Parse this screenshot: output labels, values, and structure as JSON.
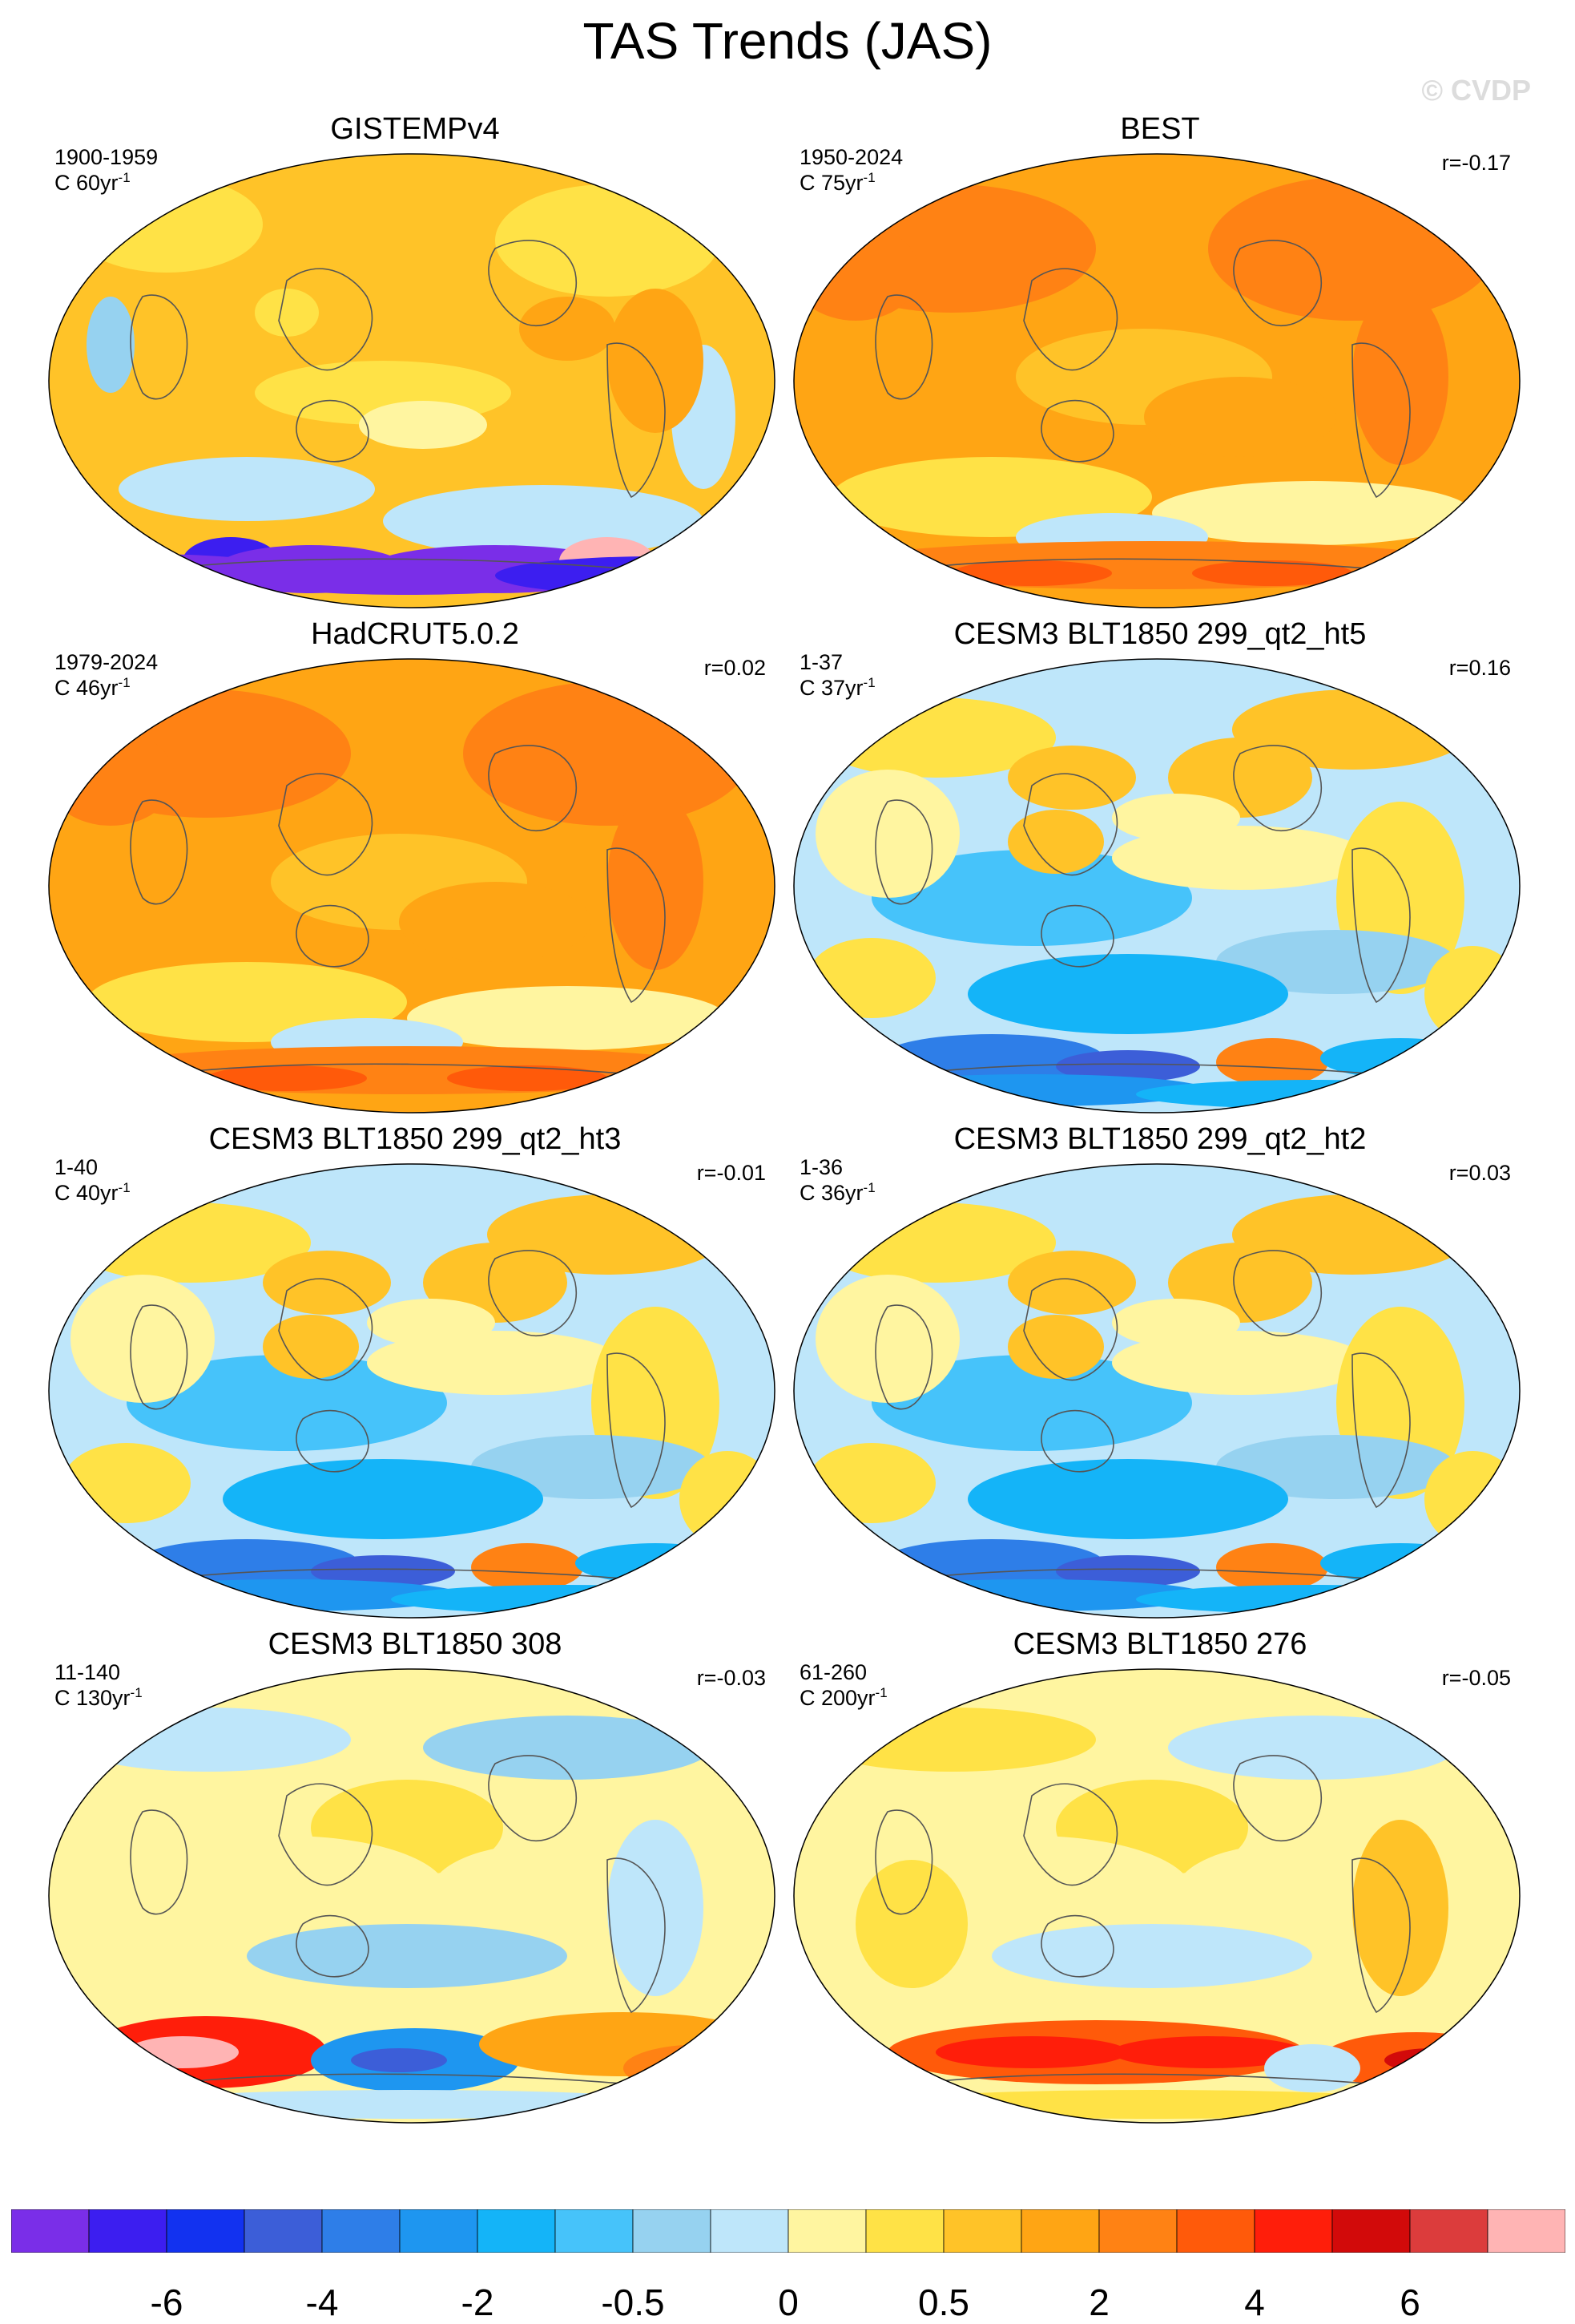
{
  "title": "TAS Trends (JAS)",
  "watermark": "© CVDP",
  "colors": {
    "background": "#ffffff",
    "coast": "#555555",
    "land_mask": "#ffffff"
  },
  "panels": [
    {
      "title": "GISTEMPv4",
      "period": "1900-1959",
      "scale_prefix": "C 60yr",
      "scale_exp": "-1",
      "corr": "",
      "pattern": "warm-mixed"
    },
    {
      "title": "BEST",
      "period": "1950-2024",
      "scale_prefix": "C 75yr",
      "scale_exp": "-1",
      "corr": "r=-0.17",
      "pattern": "warm-strong"
    },
    {
      "title": "HadCRUT5.0.2",
      "period": "1979-2024",
      "scale_prefix": "C 46yr",
      "scale_exp": "-1",
      "corr": "r=0.02",
      "pattern": "warm-strong"
    },
    {
      "title": "CESM3 BLT1850 299_qt2_ht5",
      "period": "1-37",
      "scale_prefix": "C 37yr",
      "scale_exp": "-1",
      "corr": "r=0.16",
      "pattern": "cool-mixed"
    },
    {
      "title": "CESM3 BLT1850 299_qt2_ht3",
      "period": "1-40",
      "scale_prefix": "C 40yr",
      "scale_exp": "-1",
      "corr": "r=-0.01",
      "pattern": "cool-mixed"
    },
    {
      "title": "CESM3 BLT1850 299_qt2_ht2",
      "period": "1-36",
      "scale_prefix": "C 36yr",
      "scale_exp": "-1",
      "corr": "r=0.03",
      "pattern": "cool-mixed"
    },
    {
      "title": "CESM3 BLT1850 308",
      "period": "11-140",
      "scale_prefix": "C 130yr",
      "scale_exp": "-1",
      "corr": "r=-0.03",
      "pattern": "neutral-south"
    },
    {
      "title": "CESM3 BLT1850 276",
      "period": "61-260",
      "scale_prefix": "C 200yr",
      "scale_exp": "-1",
      "corr": "r=-0.05",
      "pattern": "neutral-south-warm"
    }
  ],
  "colorbar": {
    "colors": [
      "#7a2ee8",
      "#3c1ef0",
      "#1232f0",
      "#3c5ed8",
      "#2e7ee8",
      "#1e96f0",
      "#14b4f8",
      "#46c3fa",
      "#96d2f0",
      "#bee6fa",
      "#fff5a0",
      "#ffe246",
      "#ffc328",
      "#ffa514",
      "#ff8214",
      "#ff5a0a",
      "#ff1e0a",
      "#d20a0a",
      "#dc3c3c",
      "#ffb4b4"
    ],
    "tick_labels": [
      "-6",
      "-4",
      "-2",
      "-0.5",
      "0",
      "0.5",
      "2",
      "4",
      "6"
    ]
  }
}
